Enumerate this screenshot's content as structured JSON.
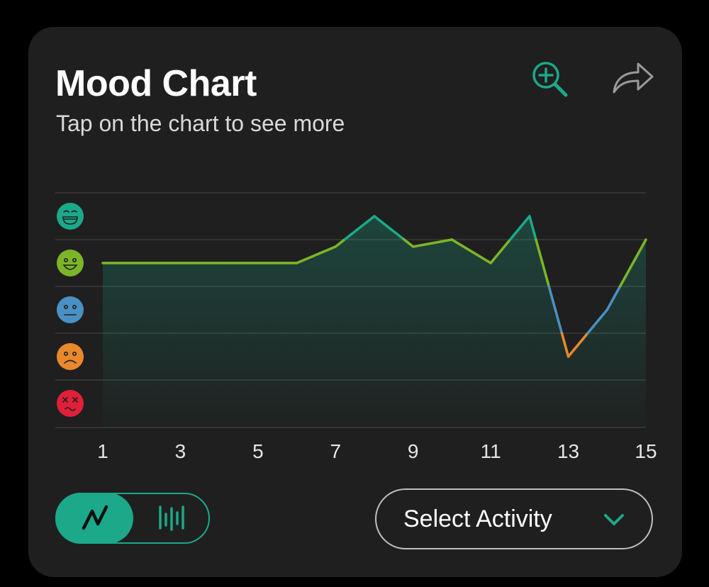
{
  "header": {
    "title": "Mood Chart",
    "subtitle": "Tap on the chart to see more",
    "zoom_icon": "zoom-in-icon",
    "share_icon": "share-icon"
  },
  "chart_data": {
    "type": "line",
    "xlabel": "",
    "ylabel": "",
    "x_ticks": [
      "1",
      "3",
      "5",
      "7",
      "9",
      "11",
      "13",
      "15"
    ],
    "xlim": [
      1,
      15
    ],
    "ylim": [
      1,
      5
    ],
    "y_levels": [
      {
        "value": 5,
        "icon": "laughing-face-icon",
        "color": "#1ba98a"
      },
      {
        "value": 4,
        "icon": "happy-face-icon",
        "color": "#7cb527"
      },
      {
        "value": 3,
        "icon": "neutral-face-icon",
        "color": "#4a90c4"
      },
      {
        "value": 2,
        "icon": "sad-face-icon",
        "color": "#e8892c"
      },
      {
        "value": 1,
        "icon": "dizzy-face-icon",
        "color": "#e0203a"
      }
    ],
    "series": [
      {
        "x": [
          1,
          2,
          3,
          4,
          5,
          6,
          7,
          8,
          9,
          10,
          11,
          12,
          13,
          14,
          15
        ],
        "y": [
          4,
          4,
          4,
          4,
          4,
          4,
          4.35,
          5,
          4.35,
          4.5,
          4,
          5,
          2,
          3,
          4.5
        ]
      }
    ],
    "grid": true,
    "fill_color": "#1ba98a"
  },
  "controls": {
    "view_toggle": {
      "selected": "line",
      "line_icon": "line-chart-icon",
      "bar_icon": "bar-chart-icon"
    },
    "select_activity_label": "Select Activity",
    "dropdown_icon": "chevron-down-icon"
  }
}
